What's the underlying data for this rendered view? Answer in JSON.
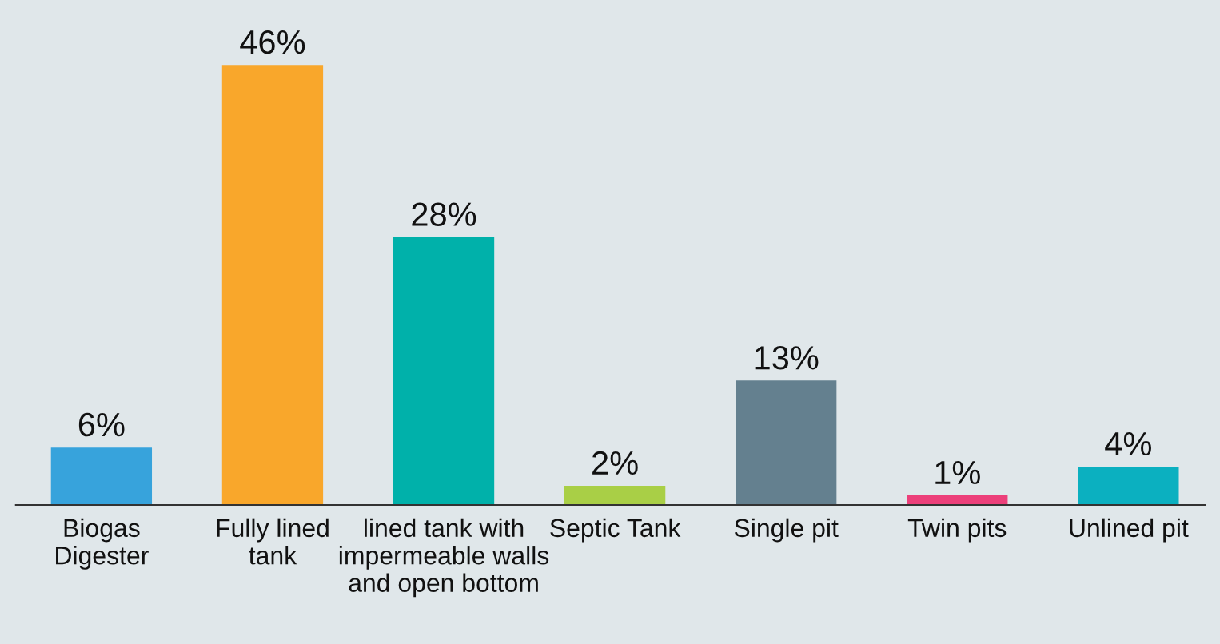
{
  "chart_data": {
    "type": "bar",
    "categories": [
      "Biogas\nDigester",
      "Fully lined\ntank",
      "lined tank with\nimpermeable walls\nand open bottom",
      "Septic Tank",
      "Single pit",
      "Twin pits",
      "Unlined pit"
    ],
    "values": [
      6,
      46,
      28,
      2,
      13,
      1,
      4
    ],
    "value_labels": [
      "6%",
      "46%",
      "28%",
      "2%",
      "13%",
      "1%",
      "4%"
    ],
    "colors": [
      "#37a3dc",
      "#f9a72b",
      "#00b1aa",
      "#a9cf46",
      "#64808f",
      "#ec407a",
      "#0bb0c0"
    ],
    "grid": false
  }
}
